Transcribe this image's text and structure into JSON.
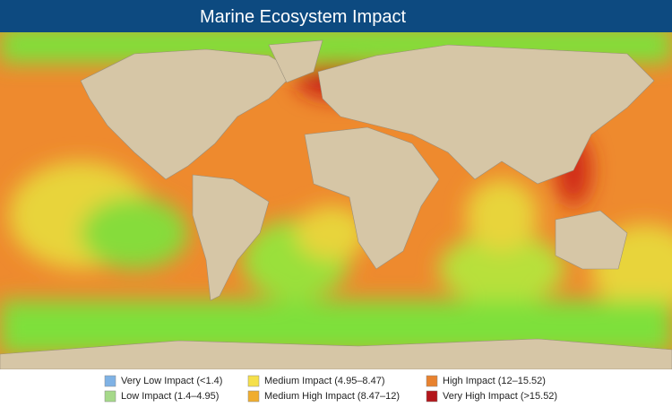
{
  "header": {
    "title": "Marine Ecosystem Impact"
  },
  "legend": {
    "items": [
      {
        "label": "Very Low Impact (<1.4)",
        "color": "#7fb2e5"
      },
      {
        "label": "Low Impact (1.4–4.95)",
        "color": "#a6d98a"
      },
      {
        "label": "Medium Impact (4.95–8.47)",
        "color": "#f5e04a"
      },
      {
        "label": "Medium High Impact (8.47–12)",
        "color": "#f0ad2e"
      },
      {
        "label": "High Impact (12–15.52)",
        "color": "#e8822f"
      },
      {
        "label": "Very High Impact (>15.52)",
        "color": "#b3161b"
      }
    ]
  }
}
